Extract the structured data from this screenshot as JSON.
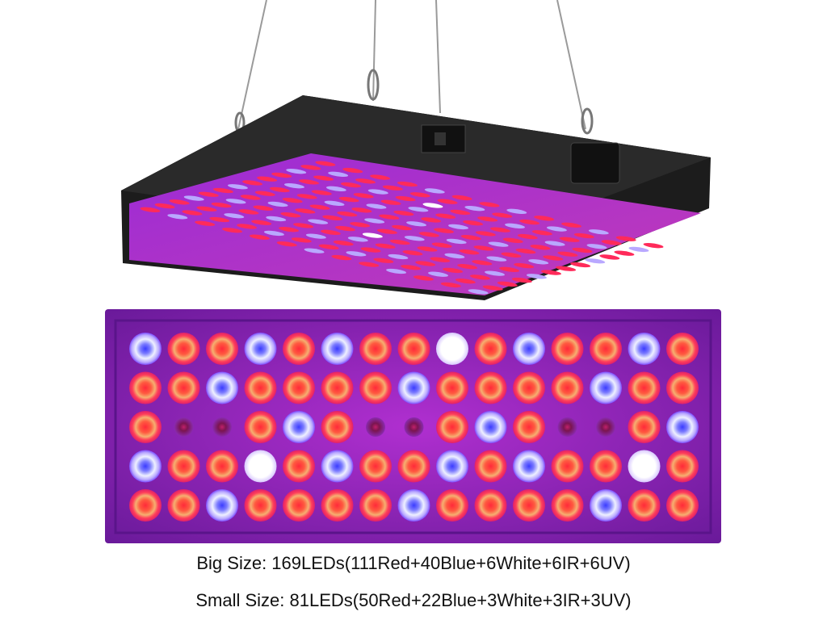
{
  "captions": {
    "big_size": "Big Size: 169LEDs(111Red+40Blue+6White+6IR+6UV)",
    "small_size": "Small Size: 81LEDs(50Red+22Blue+3White+3IR+3UV)"
  }
}
